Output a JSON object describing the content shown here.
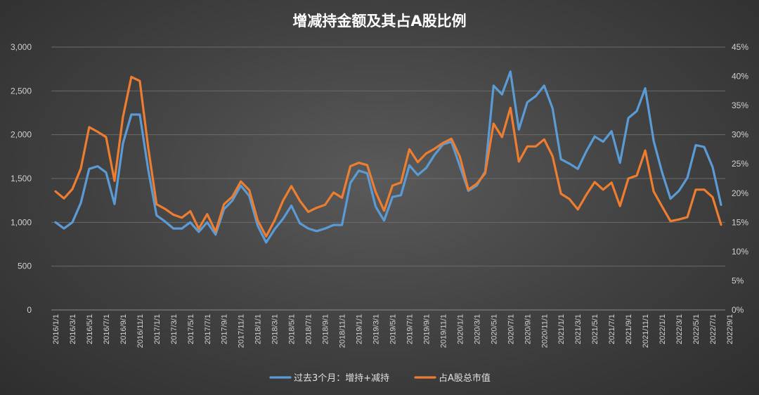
{
  "chart_data": {
    "type": "line",
    "title": "增减持金额及其占A股比例",
    "y_left": {
      "min": 0,
      "max": 3000,
      "ticks": [
        "0",
        "500",
        "1,000",
        "1,500",
        "2,000",
        "2,500",
        "3,000"
      ]
    },
    "y_right": {
      "min": 0,
      "max": 45,
      "ticks": [
        "0%",
        "5%",
        "10%",
        "15%",
        "20%",
        "25%",
        "30%",
        "35%",
        "40%",
        "45%"
      ]
    },
    "x_labels": [
      "2016/1/1",
      "2016/3/1",
      "2016/5/1",
      "2016/7/1",
      "2016/9/1",
      "2016/11/1",
      "2017/1/1",
      "2017/3/1",
      "2017/5/1",
      "2017/7/1",
      "2017/9/1",
      "2017/11/1",
      "2018/1/1",
      "2018/3/1",
      "2018/5/1",
      "2018/7/1",
      "2018/9/1",
      "2018/11/1",
      "2019/1/1",
      "2019/3/1",
      "2019/5/1",
      "2019/7/1",
      "2019/9/1",
      "2019/11/1",
      "2020/1/1",
      "2020/3/1",
      "2020/5/1",
      "2020/7/1",
      "2020/9/1",
      "2020/11/1",
      "2021/1/1",
      "2021/3/1",
      "2021/5/1",
      "2021/7/1",
      "2021/9/1",
      "2021/11/1",
      "2022/1/1",
      "2022/3/1",
      "2022/5/1",
      "2022/7/1",
      "2022/9/1"
    ],
    "series": [
      {
        "name": "过去3个月：增持+减持",
        "axis": "left",
        "color": "#5b9bd5",
        "values": [
          1000,
          930,
          1000,
          1220,
          1610,
          1640,
          1570,
          1210,
          1900,
          2230,
          2230,
          1600,
          1080,
          1010,
          930,
          930,
          1000,
          890,
          1000,
          860,
          1150,
          1250,
          1420,
          1300,
          960,
          770,
          920,
          1040,
          1190,
          990,
          930,
          900,
          930,
          970,
          970,
          1450,
          1590,
          1560,
          1180,
          1020,
          1290,
          1310,
          1650,
          1540,
          1620,
          1770,
          1890,
          1920,
          1640,
          1360,
          1420,
          1580,
          2560,
          2460,
          2720,
          2060,
          2370,
          2440,
          2560,
          2300,
          1720,
          1670,
          1610,
          1810,
          1980,
          1920,
          2040,
          1680,
          2190,
          2270,
          2530,
          1930,
          1570,
          1270,
          1360,
          1510,
          1880,
          1860,
          1630,
          1200
        ]
      },
      {
        "name": "占A股总市值",
        "axis": "right",
        "color": "#ed7d31",
        "values": [
          20.3,
          19.1,
          20.7,
          24.2,
          31.3,
          30.5,
          29.6,
          22.1,
          33.0,
          39.9,
          39.2,
          27.8,
          18.1,
          17.3,
          16.3,
          15.8,
          16.9,
          13.9,
          16.4,
          13.4,
          18.1,
          19.4,
          22.0,
          20.5,
          15.3,
          12.6,
          15.3,
          18.7,
          21.2,
          18.7,
          16.8,
          17.5,
          18.0,
          20.1,
          19.2,
          24.6,
          25.2,
          24.8,
          20.2,
          17.0,
          21.3,
          21.8,
          27.5,
          25.3,
          26.8,
          27.6,
          28.6,
          29.3,
          26.2,
          20.6,
          21.6,
          23.4,
          31.9,
          29.6,
          34.6,
          25.4,
          28.0,
          28.0,
          29.2,
          26.3,
          19.9,
          19.0,
          17.2,
          19.7,
          21.9,
          20.6,
          21.8,
          17.8,
          22.5,
          23.0,
          27.3,
          20.3,
          17.7,
          15.2,
          15.5,
          15.9,
          20.6,
          20.6,
          19.3,
          14.6
        ]
      }
    ],
    "grid": true,
    "legend_position": "bottom"
  }
}
